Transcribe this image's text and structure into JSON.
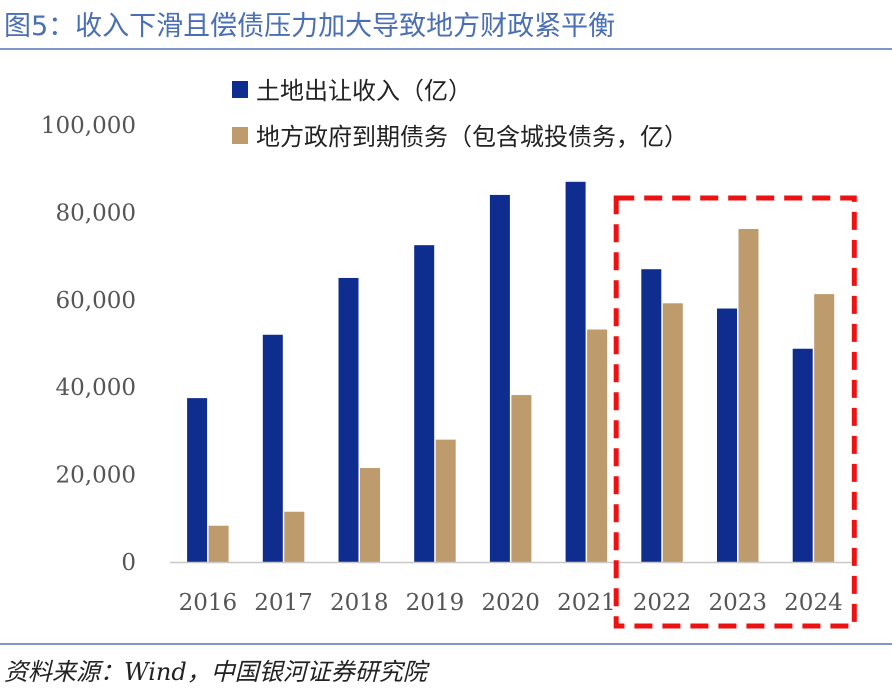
{
  "figure_title": "图5：收入下滑且偿债压力加大导致地方财政紧平衡",
  "source": "资料来源：Wind，中国银河证券研究院",
  "colors": {
    "title": "#4a6fb5",
    "rule": "#7f96c8",
    "series1": "#0e2d8f",
    "series2": "#bd9b6c",
    "highlight": "#ee1111"
  },
  "chart_data": {
    "type": "bar",
    "categories": [
      "2016",
      "2017",
      "2018",
      "2019",
      "2020",
      "2021",
      "2022",
      "2023",
      "2024"
    ],
    "series": [
      {
        "name": "土地出让收入（亿）",
        "values": [
          37500,
          52000,
          65000,
          72500,
          84000,
          87000,
          67000,
          58000,
          48800
        ]
      },
      {
        "name": "地方政府到期债务（包含城投债务，亿）",
        "values": [
          8300,
          11500,
          21500,
          28000,
          38200,
          53200,
          59200,
          76200,
          61300
        ]
      }
    ],
    "yticks": [
      "0",
      "20,000",
      "40,000",
      "60,000",
      "80,000",
      "100,000"
    ],
    "ylim": [
      0,
      100000
    ],
    "grid": false,
    "legend_position": "top",
    "highlight": {
      "from": "2022",
      "to": "2024",
      "style": "red-dashed-box"
    }
  }
}
